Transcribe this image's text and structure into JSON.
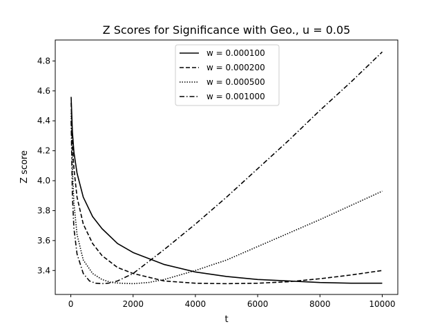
{
  "chart_data": {
    "type": "line",
    "title": "Z Scores for Significance with Geo., u = 0.05",
    "xlabel": "t",
    "ylabel": "Z score",
    "xlim": [
      -500,
      10500
    ],
    "ylim": [
      3.24,
      4.94
    ],
    "xticks": [
      0,
      2000,
      4000,
      6000,
      8000,
      10000
    ],
    "xtick_labels": [
      "0",
      "2000",
      "4000",
      "6000",
      "8000",
      "10000"
    ],
    "yticks": [
      3.4,
      3.6,
      3.8,
      4.0,
      4.2,
      4.4,
      4.6,
      4.8
    ],
    "ytick_labels": [
      "3.4",
      "3.6",
      "3.8",
      "4.0",
      "4.2",
      "4.4",
      "4.6",
      "4.8"
    ],
    "grid": false,
    "legend_position": "top-center",
    "series": [
      {
        "name": "w = 0.000100",
        "style": "solid",
        "x": [
          10,
          50,
          100,
          200,
          400,
          700,
          1000,
          1500,
          2000,
          3000,
          4000,
          5000,
          6000,
          7000,
          8000,
          9000,
          10000
        ],
        "y": [
          4.56,
          4.33,
          4.19,
          4.05,
          3.89,
          3.76,
          3.68,
          3.58,
          3.52,
          3.44,
          3.39,
          3.36,
          3.34,
          3.33,
          3.32,
          3.315,
          3.315
        ]
      },
      {
        "name": "w = 0.000200",
        "style": "dashed",
        "x": [
          10,
          50,
          100,
          200,
          400,
          700,
          1000,
          1500,
          2000,
          3000,
          4000,
          5000,
          6000,
          7000,
          8000,
          9000,
          10000
        ],
        "y": [
          4.52,
          4.25,
          4.08,
          3.89,
          3.71,
          3.58,
          3.5,
          3.42,
          3.38,
          3.33,
          3.315,
          3.312,
          3.315,
          3.325,
          3.345,
          3.37,
          3.4
        ]
      },
      {
        "name": "w = 0.000500",
        "style": "dotted",
        "x": [
          10,
          50,
          100,
          200,
          400,
          700,
          1000,
          1300,
          1600,
          2000,
          2500,
          3000,
          4000,
          5000,
          6000,
          7000,
          8000,
          9000,
          10000
        ],
        "y": [
          4.45,
          4.08,
          3.85,
          3.64,
          3.47,
          3.38,
          3.34,
          3.32,
          3.315,
          3.312,
          3.32,
          3.34,
          3.4,
          3.47,
          3.56,
          3.65,
          3.74,
          3.835,
          3.93
        ]
      },
      {
        "name": "w = 0.001000",
        "style": "dashdot",
        "x": [
          10,
          50,
          100,
          200,
          400,
          600,
          800,
          1000,
          1200,
          1500,
          2000,
          3000,
          4000,
          5000,
          6000,
          7000,
          8000,
          9000,
          10000
        ],
        "y": [
          4.4,
          3.9,
          3.68,
          3.51,
          3.38,
          3.33,
          3.315,
          3.312,
          3.315,
          3.33,
          3.38,
          3.54,
          3.71,
          3.89,
          4.08,
          4.27,
          4.47,
          4.66,
          4.86
        ]
      }
    ]
  }
}
